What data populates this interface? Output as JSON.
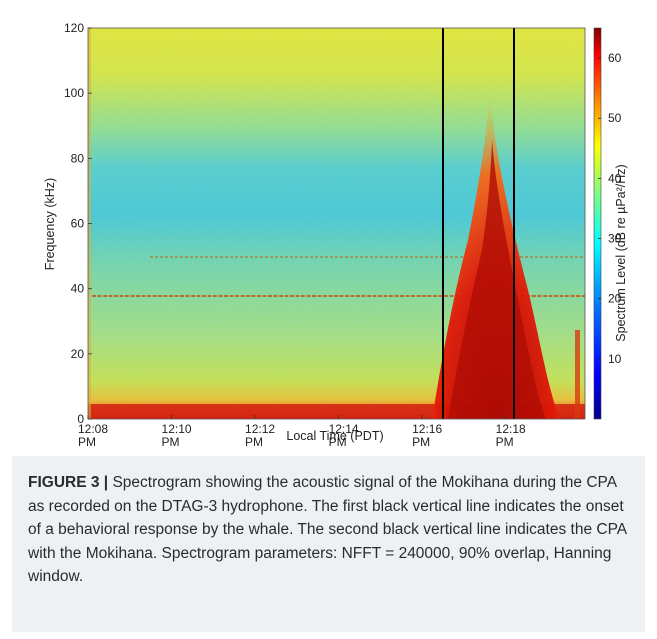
{
  "chart_data": {
    "type": "heatmap",
    "title": "",
    "xlabel": "Local Time (PDT)",
    "ylabel": "Frequency (kHz)",
    "colorbar_label": "Spectrum Level (dB re µPa²/Hz)",
    "xlim_minutes": [
      0,
      11.9
    ],
    "ylim": [
      0,
      120
    ],
    "x_ticks": [
      {
        "value": 0,
        "line1": "12:08",
        "line2": "PM"
      },
      {
        "value": 2,
        "line1": "12:10",
        "line2": "PM"
      },
      {
        "value": 4,
        "line1": "12:12",
        "line2": "PM"
      },
      {
        "value": 6,
        "line1": "12:14",
        "line2": "PM"
      },
      {
        "value": 8,
        "line1": "12:16",
        "line2": "PM"
      },
      {
        "value": 10,
        "line1": "12:18",
        "line2": "PM"
      }
    ],
    "y_ticks": [
      0,
      20,
      40,
      60,
      80,
      100,
      120
    ],
    "colorbar_ticks": [
      10,
      20,
      30,
      40,
      50,
      60
    ],
    "colorbar_range": [
      0,
      65
    ],
    "colormap": [
      "#00008f",
      "#0000ff",
      "#0080ff",
      "#00ffff",
      "#80ff80",
      "#ffff00",
      "#ff8000",
      "#ff0000",
      "#800000"
    ],
    "vertical_lines": [
      {
        "x_minutes": 8.5,
        "meaning": "onset of behavioral response"
      },
      {
        "x_minutes": 10.2,
        "meaning": "CPA with the Mokihana"
      }
    ],
    "tonal_bands_kHz": [
      38,
      50
    ],
    "grid": false
  },
  "caption": {
    "label": "FIGURE 3 |",
    "text": " Spectrogram showing the acoustic signal of the Mokihana during the CPA as recorded on the DTAG-3 hydrophone. The first black vertical line indicates the onset of a behavioral response by the whale. The second black vertical line indicates the CPA with the Mokihana. Spectrogram parameters: NFFT = 240000, 90% overlap, Hanning window."
  },
  "colors": {
    "background": "#ffffff",
    "caption_bg": "#eef1f3",
    "marker_line": "#000000"
  }
}
